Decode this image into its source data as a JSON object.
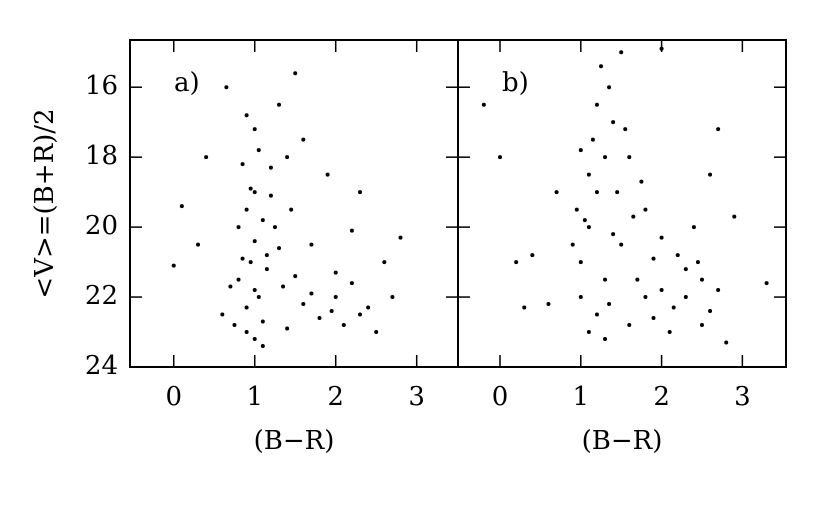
{
  "chart_data": [
    {
      "type": "scatter",
      "label": "a)",
      "xlabel": "(B−R)",
      "ylabel": "<V>=(B+R)/2",
      "color": "#000000",
      "xlim": [
        -0.54,
        3.51
      ],
      "ylim": [
        24,
        14.65
      ],
      "xticks": [
        0,
        1,
        2,
        3
      ],
      "yticks": [
        16,
        18,
        20,
        22,
        24
      ],
      "x": [
        0.8,
        0.9,
        1.0,
        1.1,
        0.95,
        1.05,
        1.2,
        0.85,
        0.75,
        1.0,
        1.15,
        1.3,
        1.5,
        1.7,
        2.0,
        2.2,
        2.4,
        1.8,
        2.1,
        1.6,
        0.9,
        1.0,
        1.1,
        0.8,
        1.2,
        1.4,
        1.0,
        0.9,
        1.3,
        1.5,
        0.4,
        0.1,
        0.3,
        0.6,
        2.6,
        2.8,
        2.3,
        1.9,
        2.5,
        1.4,
        1.25,
        0.95,
        1.05,
        0.7,
        1.35,
        2.0,
        2.3,
        1.7,
        0.0,
        2.2,
        1.6,
        0.65,
        1.1,
        0.9,
        1.95,
        1.45,
        0.85,
        1.15,
        1.0,
        2.7
      ],
      "y": [
        21.5,
        22.3,
        20.4,
        19.8,
        18.9,
        17.8,
        18.3,
        20.9,
        22.8,
        23.2,
        21.2,
        20.6,
        21.4,
        21.9,
        22.0,
        21.6,
        22.3,
        22.6,
        22.8,
        22.2,
        19.5,
        21.8,
        22.7,
        20.0,
        19.1,
        18.0,
        17.2,
        16.8,
        16.5,
        15.6,
        18.0,
        19.4,
        20.5,
        22.5,
        21.0,
        20.3,
        19.0,
        18.5,
        23.0,
        22.9,
        20.0,
        21.0,
        22.0,
        21.7,
        21.7,
        21.3,
        22.5,
        20.5,
        21.1,
        20.1,
        17.5,
        16.0,
        23.4,
        23.0,
        22.4,
        19.5,
        18.2,
        20.8,
        19.0,
        22.0
      ]
    },
    {
      "type": "scatter",
      "label": "b)",
      "xlabel": "(B−R)",
      "color": "#000000",
      "xlim": [
        -0.52,
        3.54
      ],
      "ylim": [
        24,
        14.65
      ],
      "xticks": [
        0,
        1,
        2,
        3
      ],
      "x": [
        1.2,
        1.3,
        1.1,
        1.4,
        1.2,
        1.35,
        1.0,
        1.5,
        1.7,
        2.0,
        2.3,
        2.5,
        2.6,
        1.9,
        1.6,
        1.2,
        1.0,
        0.95,
        1.1,
        1.45,
        1.6,
        1.8,
        2.0,
        2.2,
        2.4,
        2.6,
        2.7,
        1.25,
        1.5,
        2.0,
        1.8,
        1.3,
        1.1,
        2.1,
        2.8,
        0.9,
        1.4,
        1.65,
        2.3,
        2.7,
        0.6,
        0.2,
        0.0,
        -0.2,
        0.4,
        0.7,
        3.3,
        0.3,
        1.15,
        1.55,
        1.9,
        2.5,
        1.0,
        1.3,
        2.9,
        1.75,
        1.05,
        1.35,
        2.15,
        2.45
      ],
      "y": [
        19.0,
        18.0,
        20.0,
        17.0,
        16.5,
        16.0,
        21.0,
        20.5,
        21.5,
        21.8,
        22.0,
        21.5,
        22.4,
        22.6,
        22.8,
        22.5,
        22.0,
        19.5,
        18.5,
        19.0,
        18.0,
        19.5,
        20.3,
        20.8,
        20.0,
        18.5,
        17.2,
        15.4,
        15.0,
        14.9,
        22.0,
        21.5,
        23.0,
        23.0,
        23.3,
        20.5,
        20.2,
        19.7,
        21.2,
        21.8,
        22.2,
        21.0,
        18.0,
        16.5,
        20.8,
        19.0,
        21.6,
        22.3,
        17.5,
        17.2,
        20.9,
        22.8,
        17.8,
        23.2,
        19.7,
        18.7,
        19.8,
        22.2,
        22.3,
        21.0
      ]
    }
  ]
}
